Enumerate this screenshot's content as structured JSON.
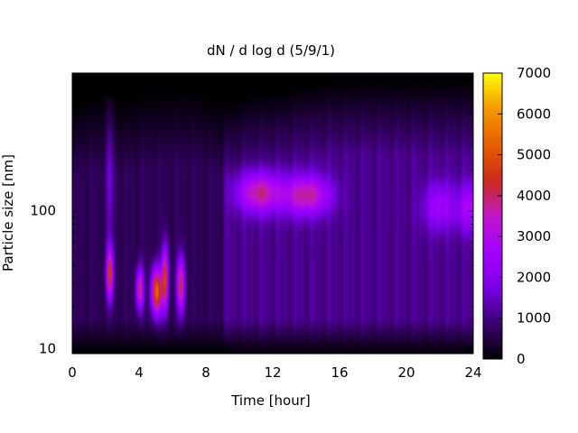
{
  "chart_data": {
    "type": "heatmap",
    "title": "dN / d log d (5/9/1)",
    "xlabel": "Time [hour]",
    "ylabel": "Particle size [nm]",
    "xlim": [
      0,
      24
    ],
    "ylim": [
      9.2,
      1000
    ],
    "y_scale": "log",
    "xticks": [
      0,
      4,
      8,
      12,
      16,
      20,
      24
    ],
    "yticks": [
      10,
      100
    ],
    "colorbar": {
      "range": [
        0,
        7000
      ],
      "ticks": [
        0,
        1000,
        2000,
        3000,
        4000,
        5000,
        6000,
        7000
      ],
      "palette": [
        "#000000",
        "#3a0070",
        "#7a00e6",
        "#a400ff",
        "#c018c8",
        "#cc2a1a",
        "#e66000",
        "#f59800",
        "#ffff00"
      ]
    },
    "upper_limit_hours": [
      0,
      0.4,
      0.7,
      1,
      1.3,
      1.6,
      2,
      2.5,
      3,
      3.5,
      4,
      4.5,
      5,
      5.5,
      6,
      6.3,
      7,
      7.5,
      8,
      8.5,
      9,
      9.5,
      10,
      10.5,
      11,
      11.5,
      12,
      12.5,
      13,
      13.5,
      14,
      15,
      16,
      16.5,
      17,
      20,
      24
    ],
    "upper_limit_nm": [
      580,
      620,
      660,
      700,
      660,
      700,
      700,
      660,
      640,
      660,
      700,
      720,
      720,
      720,
      800,
      730,
      760,
      740,
      700,
      650,
      620,
      600,
      640,
      680,
      720,
      700,
      720,
      740,
      760,
      800,
      820,
      850,
      870,
      880,
      880,
      880,
      880
    ],
    "background_level": 950,
    "features": [
      {
        "t": 2.25,
        "d": 35,
        "st": 0.15,
        "sd": 0.13,
        "value": 3800
      },
      {
        "t": 2.25,
        "d": 180,
        "st": 0.18,
        "sd": 0.35,
        "value": 900
      },
      {
        "t": 4.05,
        "d": 27,
        "st": 0.16,
        "sd": 0.11,
        "value": 3200
      },
      {
        "t": 5.05,
        "d": 26,
        "st": 0.22,
        "sd": 0.12,
        "value": 4700
      },
      {
        "t": 5.55,
        "d": 32,
        "st": 0.14,
        "sd": 0.16,
        "value": 3900
      },
      {
        "t": 6.5,
        "d": 29,
        "st": 0.17,
        "sd": 0.14,
        "value": 3500
      },
      {
        "t": 11.2,
        "d": 135,
        "st": 0.9,
        "sd": 0.1,
        "value": 2700
      },
      {
        "t": 14.0,
        "d": 130,
        "st": 1.0,
        "sd": 0.1,
        "value": 2700
      },
      {
        "t": 22.0,
        "d": 108,
        "st": 0.7,
        "sd": 0.12,
        "value": 1500
      },
      {
        "t": 23.8,
        "d": 105,
        "st": 0.5,
        "sd": 0.12,
        "value": 1700
      }
    ]
  }
}
